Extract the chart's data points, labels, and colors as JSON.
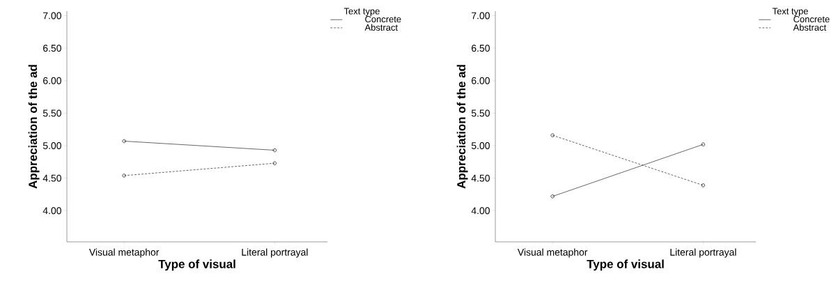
{
  "chart_data": [
    {
      "type": "line",
      "categories": [
        "Visual metaphor",
        "Literal portrayal"
      ],
      "xlabel": "Type of visual",
      "ylabel": "Appreciation of the ad",
      "legend_title": "Text type",
      "legend": "top right",
      "marker": "circle",
      "ylim": [
        3.52,
        7.07
      ],
      "yticks": [
        {
          "value": 4,
          "label": "4.00"
        },
        {
          "value": 4.5,
          "label": "4.50"
        },
        {
          "value": 5,
          "label": "5.00"
        },
        {
          "value": 5.5,
          "label": "5.50"
        },
        {
          "value": 6,
          "label": "6.00"
        },
        {
          "value": 6.5,
          "label": "6.50"
        },
        {
          "value": 7,
          "label": "7.00"
        }
      ],
      "series": [
        {
          "name": "Concrete",
          "color": "#000000",
          "line_style": "solid",
          "values": [
            5.07,
            4.93
          ]
        },
        {
          "name": "Abstract",
          "color": "#000000",
          "line_style": "dashed",
          "values": [
            4.54,
            4.73
          ]
        }
      ]
    },
    {
      "type": "line",
      "categories": [
        "Visual metaphor",
        "Literal portrayal"
      ],
      "xlabel": "Type of visual",
      "ylabel": "Appreciation of the ad",
      "legend_title": "Text type",
      "legend": "top right",
      "marker": "circle",
      "ylim": [
        3.52,
        7.07
      ],
      "yticks": [
        {
          "value": 4,
          "label": "4.00"
        },
        {
          "value": 4.5,
          "label": "4.50"
        },
        {
          "value": 5,
          "label": "5.00"
        },
        {
          "value": 5.5,
          "label": "5.50"
        },
        {
          "value": 6,
          "label": "6.00"
        },
        {
          "value": 6.5,
          "label": "6.50"
        },
        {
          "value": 7,
          "label": "7.00"
        }
      ],
      "series": [
        {
          "name": "Concrete",
          "color": "#000000",
          "line_style": "solid",
          "values": [
            4.22,
            5.02
          ]
        },
        {
          "name": "Abstract",
          "color": "#000000",
          "line_style": "dashed",
          "values": [
            5.16,
            4.39
          ]
        }
      ]
    }
  ]
}
